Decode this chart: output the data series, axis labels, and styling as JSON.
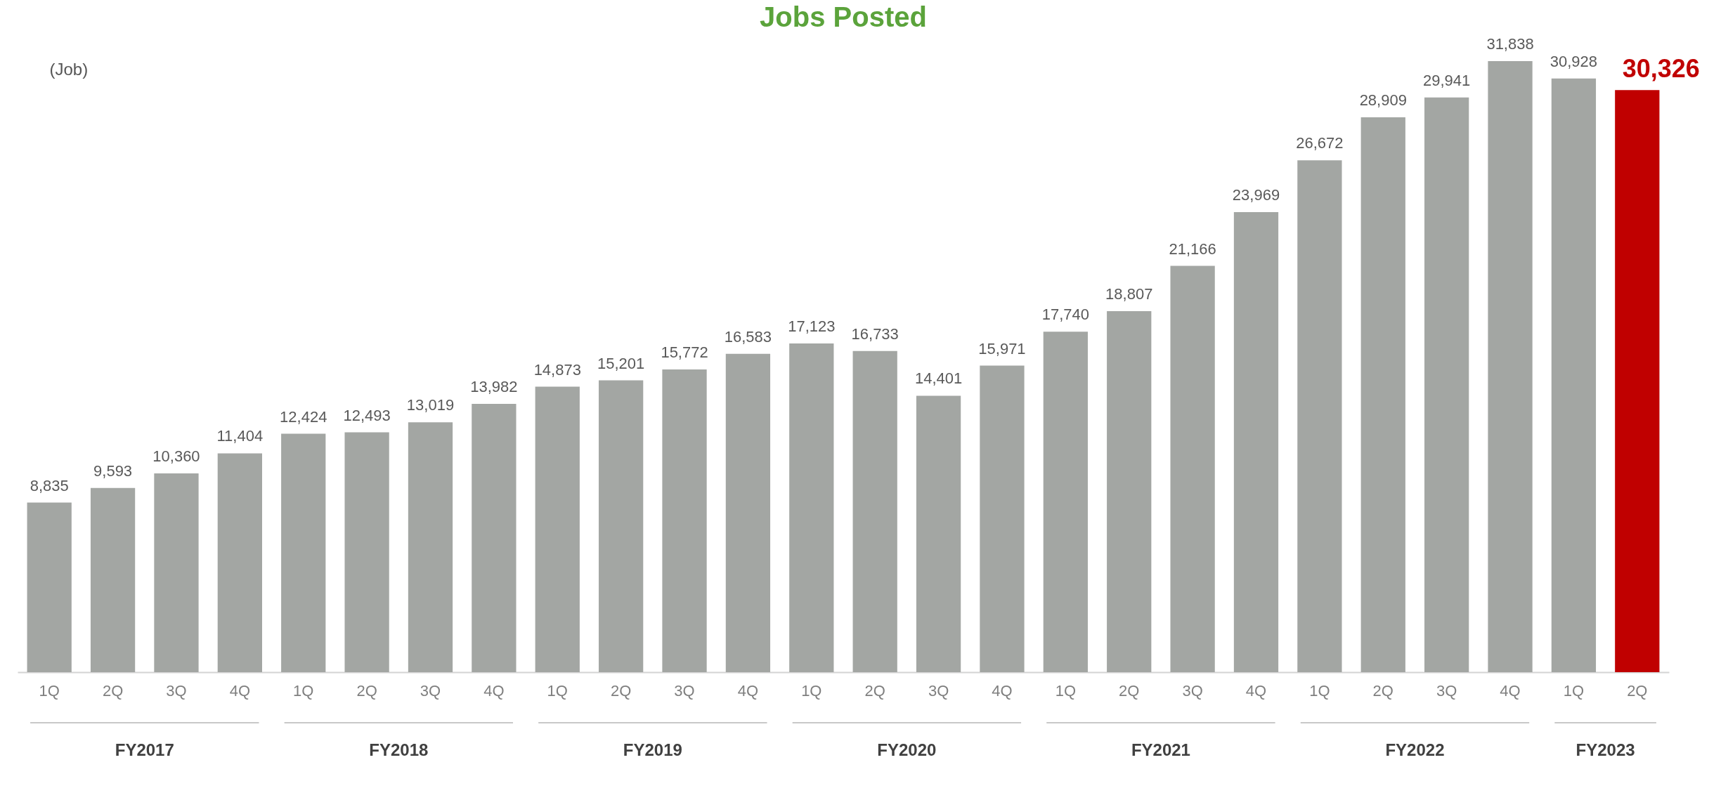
{
  "chart_data": {
    "type": "bar",
    "title": "Jobs Posted",
    "ylabel": "(Job)",
    "categories": [
      "1Q",
      "2Q",
      "3Q",
      "4Q",
      "1Q",
      "2Q",
      "3Q",
      "4Q",
      "1Q",
      "2Q",
      "3Q",
      "4Q",
      "1Q",
      "2Q",
      "3Q",
      "4Q",
      "1Q",
      "2Q",
      "3Q",
      "4Q",
      "1Q",
      "2Q",
      "3Q",
      "4Q",
      "1Q",
      "2Q"
    ],
    "values": [
      8835,
      9593,
      10360,
      11404,
      12424,
      12493,
      13019,
      13982,
      14873,
      15201,
      15772,
      16583,
      17123,
      16733,
      14401,
      15971,
      17740,
      18807,
      21166,
      23969,
      26672,
      28909,
      29941,
      31838,
      30928,
      30326
    ],
    "value_labels": [
      "8,835",
      "9,593",
      "10,360",
      "11,404",
      "12,424",
      "12,493",
      "13,019",
      "13,982",
      "14,873",
      "15,201",
      "15,772",
      "16,583",
      "17,123",
      "16,733",
      "14,401",
      "15,971",
      "17,740",
      "18,807",
      "21,166",
      "23,969",
      "26,672",
      "28,909",
      "29,941",
      "31,838",
      "30,928",
      "30,326"
    ],
    "colors": [
      "#a3a6a3",
      "#a3a6a3",
      "#a3a6a3",
      "#a3a6a3",
      "#a3a6a3",
      "#a3a6a3",
      "#a3a6a3",
      "#a3a6a3",
      "#a3a6a3",
      "#a3a6a3",
      "#a3a6a3",
      "#a3a6a3",
      "#a3a6a3",
      "#a3a6a3",
      "#a3a6a3",
      "#a3a6a3",
      "#a3a6a3",
      "#a3a6a3",
      "#a3a6a3",
      "#a3a6a3",
      "#a3a6a3",
      "#a3a6a3",
      "#a3a6a3",
      "#a3a6a3",
      "#a3a6a3",
      "#c00000"
    ],
    "tick_labels": "x",
    "annotations": [
      "FY2017",
      "FY2018",
      "FY2019",
      "FY2020",
      "FY2021",
      "FY2022",
      "FY2023"
    ]
  }
}
